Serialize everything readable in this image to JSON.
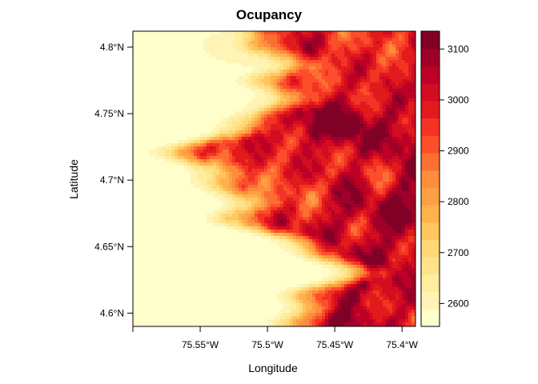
{
  "chart_data": {
    "type": "heatmap",
    "title": "Ocupancy",
    "xlabel": "Longitude",
    "ylabel": "Latitude",
    "x_ticks": [
      {
        "value": -75.55,
        "label": "75.55°W"
      },
      {
        "value": -75.5,
        "label": "75.5°W"
      },
      {
        "value": -75.45,
        "label": "75.45°W"
      },
      {
        "value": -75.4,
        "label": "75.4°W"
      }
    ],
    "y_ticks": [
      {
        "value": 4.8,
        "label": "4.8°N"
      },
      {
        "value": 4.75,
        "label": "4.75°N"
      },
      {
        "value": 4.7,
        "label": "4.7°N"
      },
      {
        "value": 4.65,
        "label": "4.65°N"
      },
      {
        "value": 4.6,
        "label": "4.6°N"
      }
    ],
    "xlim": [
      -75.6,
      -75.39
    ],
    "ylim": [
      4.59,
      4.812
    ],
    "colorbar": {
      "range": [
        2555,
        3135
      ],
      "ticks": [
        {
          "value": 2600,
          "label": "2600"
        },
        {
          "value": 2700,
          "label": "2700"
        },
        {
          "value": 2800,
          "label": "2800"
        },
        {
          "value": 2900,
          "label": "2900"
        },
        {
          "value": 3000,
          "label": "3000"
        },
        {
          "value": 3100,
          "label": "3100"
        }
      ],
      "colors": [
        "#FFFFCC",
        "#FFF4B6",
        "#FFEDA0",
        "#FEE38B",
        "#FED976",
        "#FEC561",
        "#FEB24C",
        "#FD9F44",
        "#FD8D3C",
        "#FC6F33",
        "#FC4E2A",
        "#F23424",
        "#E31A1C",
        "#D20C21",
        "#BD0026",
        "#9F0027",
        "#800026"
      ]
    },
    "grid": false,
    "legend": "right colorbar"
  }
}
